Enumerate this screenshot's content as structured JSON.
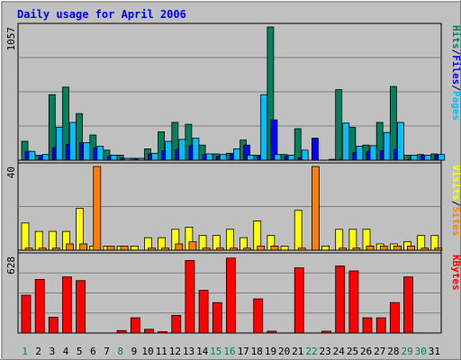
{
  "chart_data": {
    "type": "bar",
    "title": "Daily usage for April 2006",
    "categories": [
      "1",
      "2",
      "3",
      "4",
      "5",
      "6",
      "7",
      "8",
      "9",
      "10",
      "11",
      "12",
      "13",
      "14",
      "15",
      "16",
      "17",
      "18",
      "19",
      "20",
      "21",
      "22",
      "23",
      "24",
      "25",
      "26",
      "27",
      "28",
      "29",
      "30",
      "31"
    ],
    "weekend_days": [
      1,
      8,
      15,
      16,
      22,
      29,
      30
    ],
    "panels": [
      {
        "id": "top",
        "max_label": "1057",
        "ymax": 1057,
        "axis_labels": [
          {
            "text": "Hits",
            "color": "#00805c"
          },
          {
            "text": "/",
            "color": "#000000"
          },
          {
            "text": "Files",
            "color": "#0000ff"
          },
          {
            "text": "/",
            "color": "#000000"
          },
          {
            "text": "Pages",
            "color": "#00c0ff"
          }
        ],
        "series": [
          {
            "name": "Hits",
            "color": "#00805c",
            "values": [
              150,
              40,
              520,
              580,
              370,
              200,
              80,
              40,
              15,
              90,
              225,
              300,
              285,
              120,
              50,
              55,
              160,
              40,
              1057,
              45,
              250,
              0,
              0,
              560,
              260,
              120,
              300,
              585,
              40,
              45,
              50
            ]
          },
          {
            "name": "Files",
            "color": "#0000ff",
            "values": [
              70,
              40,
              100,
              125,
              140,
              95,
              30,
              15,
              10,
              50,
              75,
              85,
              115,
              45,
              30,
              45,
              120,
              30,
              320,
              30,
              20,
              175,
              0,
              5,
              60,
              70,
              75,
              85,
              5,
              40,
              40
            ]
          },
          {
            "name": "Pages",
            "color": "#00c0ff",
            "values": [
              70,
              45,
              260,
              300,
              140,
              110,
              40,
              15,
              15,
              55,
              150,
              165,
              175,
              50,
              45,
              90,
              40,
              520,
              45,
              40,
              80,
              0,
              5,
              295,
              110,
              115,
              220,
              300,
              40,
              40,
              45
            ]
          }
        ]
      },
      {
        "id": "mid",
        "max_label": "40",
        "ymax": 40,
        "axis_labels": [
          {
            "text": "Visits",
            "color": "#ffff00"
          },
          {
            "text": "/",
            "color": "#000000"
          },
          {
            "text": "Sites",
            "color": "#ff8000"
          }
        ],
        "series": [
          {
            "name": "Visits",
            "color": "#ffff00",
            "values": [
              13,
              9,
              9,
              9,
              20,
              2,
              2,
              2,
              2,
              6,
              6,
              10,
              11,
              7,
              7,
              10,
              6,
              14,
              7,
              2,
              19,
              0,
              2,
              10,
              10,
              10,
              3,
              3,
              4,
              7,
              7
            ]
          },
          {
            "name": "Sites",
            "color": "#ff8000",
            "values": [
              1,
              1,
              1,
              3,
              3,
              40,
              2,
              2,
              0,
              1,
              1,
              3,
              4,
              1,
              1,
              1,
              1,
              2,
              2,
              0,
              1,
              40,
              0,
              1,
              1,
              2,
              2,
              2,
              2,
              1,
              1
            ]
          }
        ]
      },
      {
        "id": "bot",
        "max_label": "628",
        "ymax": 628,
        "axis_labels": [
          {
            "text": "KBytes",
            "color": "#ff0000"
          }
        ],
        "series": [
          {
            "name": "KBytes",
            "color": "#ff0000",
            "values": [
              310,
              440,
              130,
              460,
              430,
              0,
              0,
              20,
              125,
              30,
              10,
              145,
              595,
              350,
              250,
              615,
              0,
              280,
              15,
              0,
              535,
              0,
              15,
              550,
              510,
              125,
              125,
              250,
              460,
              0,
              0
            ]
          }
        ]
      }
    ]
  }
}
